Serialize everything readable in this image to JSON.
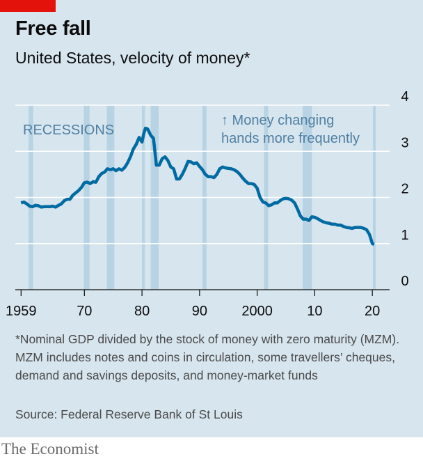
{
  "brand_color": "#e3120b",
  "footnote": "*Nominal GDP divided by the stock of money with zero maturity (MZM). MZM includes notes and coins in circulation, some travellers’ cheques, demand and savings deposits, and money-market funds",
  "source": "Source: Federal Reserve Bank of St Louis",
  "brand": "The Economist",
  "chart_data": {
    "type": "line",
    "title": "Free fall",
    "subtitle": "United States, velocity of money*",
    "xlabel": "",
    "ylabel": "",
    "xlim": [
      1958,
      2023
    ],
    "ylim": [
      0,
      4
    ],
    "y_axis_side": "right",
    "grid": true,
    "yticks": [
      0,
      1,
      2,
      3,
      4
    ],
    "xticks": [
      {
        "value": 1959,
        "label": "1959"
      },
      {
        "value": 1970,
        "label": "70"
      },
      {
        "value": 1980,
        "label": "80"
      },
      {
        "value": 1990,
        "label": "90"
      },
      {
        "value": 2000,
        "label": "2000"
      },
      {
        "value": 2010,
        "label": "10"
      },
      {
        "value": 2020,
        "label": "20"
      }
    ],
    "recessions_label": "RECESSIONS",
    "recessions": [
      [
        1960.3,
        1961.1
      ],
      [
        1969.9,
        1970.9
      ],
      [
        1973.9,
        1975.2
      ],
      [
        1980.0,
        1980.5
      ],
      [
        1981.5,
        1982.9
      ],
      [
        1990.5,
        1991.2
      ],
      [
        2001.2,
        2001.9
      ],
      [
        2007.9,
        2009.5
      ],
      [
        2020.1,
        2020.4
      ]
    ],
    "annotation": [
      "↑ Money changing",
      "hands more frequently"
    ],
    "colors": {
      "line": "#006ba2",
      "recession": "#b8d3e4",
      "grid": "#ffffff",
      "axis": "#0c0c0c",
      "annotation": "#4f7fa2"
    },
    "series": [
      {
        "x": [
          1959.0,
          1959.5,
          1960.0,
          1960.5,
          1961.0,
          1961.5,
          1962.0,
          1962.5,
          1963.0,
          1963.5,
          1964.0,
          1964.5,
          1965.0,
          1965.5,
          1966.0,
          1966.5,
          1967.0,
          1967.5,
          1968.0,
          1968.5,
          1969.0,
          1969.5,
          1970.0,
          1970.5,
          1971.0,
          1971.5,
          1972.0,
          1972.5,
          1973.0,
          1973.5,
          1974.0,
          1974.5,
          1975.0,
          1975.5,
          1976.0,
          1976.5,
          1977.0,
          1977.5,
          1978.0,
          1978.5,
          1979.0,
          1979.5,
          1980.0,
          1980.3,
          1980.6,
          1981.0,
          1981.5,
          1982.0,
          1982.5,
          1983.0,
          1983.5,
          1984.0,
          1984.5,
          1985.0,
          1985.5,
          1986.0,
          1986.5,
          1987.0,
          1987.5,
          1988.0,
          1988.5,
          1989.0,
          1989.5,
          1990.0,
          1990.5,
          1991.0,
          1991.5,
          1992.0,
          1992.5,
          1993.0,
          1993.5,
          1994.0,
          1994.5,
          1995.0,
          1995.5,
          1996.0,
          1996.5,
          1997.0,
          1997.5,
          1998.0,
          1998.5,
          1999.0,
          1999.5,
          2000.0,
          2000.5,
          2001.0,
          2001.5,
          2002.0,
          2002.5,
          2003.0,
          2003.5,
          2004.0,
          2004.5,
          2005.0,
          2005.5,
          2006.0,
          2006.5,
          2007.0,
          2007.5,
          2008.0,
          2008.5,
          2009.0,
          2009.5,
          2010.0,
          2010.5,
          2011.0,
          2011.5,
          2012.0,
          2012.5,
          2013.0,
          2013.5,
          2014.0,
          2014.5,
          2015.0,
          2015.5,
          2016.0,
          2016.5,
          2017.0,
          2017.5,
          2018.0,
          2018.5,
          2019.0,
          2019.5,
          2020.0,
          2020.3
        ],
        "y": [
          1.88,
          1.9,
          1.86,
          1.81,
          1.8,
          1.83,
          1.82,
          1.79,
          1.8,
          1.8,
          1.8,
          1.81,
          1.79,
          1.83,
          1.86,
          1.93,
          1.96,
          1.96,
          2.05,
          2.1,
          2.15,
          2.22,
          2.32,
          2.33,
          2.3,
          2.34,
          2.33,
          2.45,
          2.52,
          2.55,
          2.62,
          2.6,
          2.62,
          2.58,
          2.62,
          2.59,
          2.65,
          2.75,
          2.88,
          3.05,
          3.15,
          3.3,
          3.2,
          3.38,
          3.5,
          3.48,
          3.35,
          3.28,
          2.7,
          2.7,
          2.84,
          2.88,
          2.8,
          2.66,
          2.62,
          2.4,
          2.4,
          2.5,
          2.63,
          2.78,
          2.77,
          2.73,
          2.75,
          2.67,
          2.6,
          2.5,
          2.45,
          2.45,
          2.43,
          2.5,
          2.62,
          2.66,
          2.64,
          2.63,
          2.62,
          2.6,
          2.56,
          2.5,
          2.42,
          2.35,
          2.3,
          2.3,
          2.28,
          2.2,
          2.0,
          1.9,
          1.88,
          1.82,
          1.84,
          1.88,
          1.88,
          1.93,
          1.97,
          1.98,
          1.97,
          1.94,
          1.88,
          1.75,
          1.6,
          1.53,
          1.53,
          1.5,
          1.58,
          1.57,
          1.54,
          1.5,
          1.47,
          1.45,
          1.44,
          1.42,
          1.42,
          1.4,
          1.4,
          1.37,
          1.35,
          1.34,
          1.33,
          1.35,
          1.35,
          1.35,
          1.33,
          1.3,
          1.2,
          1.0,
          0.98
        ]
      }
    ]
  }
}
